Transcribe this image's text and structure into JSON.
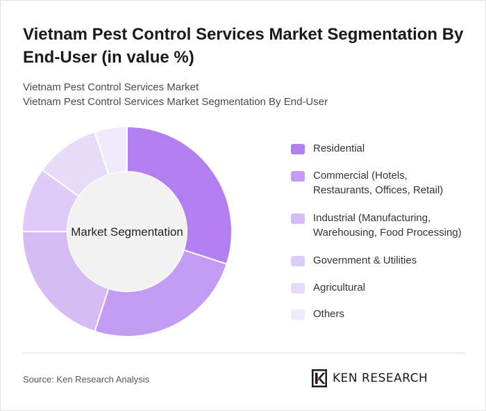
{
  "title": "Vietnam Pest Control Services Market Segmentation By End-User (in value %)",
  "subtitle_lines": [
    "Vietnam Pest Control Services Market",
    "Vietnam Pest Control Services Market Segmentation By End-User"
  ],
  "chart_data": {
    "type": "pie",
    "center_label": "Market Segmentation",
    "categories": [
      "Residential",
      "Commercial (Hotels, Restaurants, Offices, Retail)",
      "Industrial (Manufacturing, Warehousing, Food Processing)",
      "Government & Utilities",
      "Agricultural",
      "Others"
    ],
    "values": [
      30,
      25,
      20,
      10,
      10,
      5
    ],
    "colors": [
      "#b27ff0",
      "#c39bf2",
      "#d6bcf5",
      "#dfcbf7",
      "#e8dbf9",
      "#f1eafc"
    ]
  },
  "legend": [
    {
      "label_lines": [
        "Residential"
      ]
    },
    {
      "label_lines": [
        "Commercial (Hotels,",
        "Restaurants, Offices, Retail)"
      ]
    },
    {
      "label_lines": [
        "Industrial (Manufacturing,",
        "Warehousing, Food Processing)"
      ]
    },
    {
      "label_lines": [
        "Government & Utilities"
      ]
    },
    {
      "label_lines": [
        "Agricultural"
      ]
    },
    {
      "label_lines": [
        "Others"
      ]
    }
  ],
  "footer": {
    "source": "Source: Ken Research Analysis",
    "logo_text": "KEN RESEARCH"
  }
}
